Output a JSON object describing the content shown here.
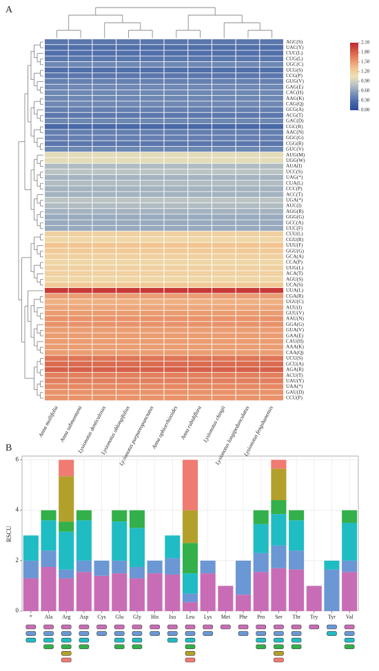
{
  "chart_data": [
    {
      "type": "heatmap",
      "label": "A",
      "rows": [
        "AGC(S)",
        "UAC(Y)",
        "CUC(L)",
        "CUG(L)",
        "UGC(C)",
        "UCG(S)",
        "CCG(P)",
        "GUG(V)",
        "GAG(E)",
        "CAC(H)",
        "AAG(K)",
        "CAG(Q)",
        "GCG(A)",
        "ACG(T)",
        "GAC(D)",
        "CGC(R)",
        "AAC(N)",
        "GGC(G)",
        "CGG(R)",
        "GUC(V)",
        "AUG(M)",
        "UGG(W)",
        "AUA(I)",
        "UCC(S)",
        "UAG(*)",
        "CUA(L)",
        "CCC(P)",
        "ACC(T)",
        "UGA(*)",
        "AUC(I)",
        "AGG(R)",
        "GGG(G)",
        "GCC(A)",
        "UUC(F)",
        "CUU(L)",
        "CGU(R)",
        "UUU(F)",
        "GGU(G)",
        "GCA(A)",
        "CCA(P)",
        "UUG(L)",
        "ACA(T)",
        "AGU(S)",
        "UCA(S)",
        "UUA(L)",
        "CGA(R)",
        "UGU(C)",
        "AUU(I)",
        "GUU(V)",
        "AAU(N)",
        "GGA(G)",
        "GUA(V)",
        "GAA(E)",
        "CAU(H)",
        "AAA(K)",
        "CAA(Q)",
        "UCU(S)",
        "GCU(A)",
        "AGA(R)",
        "ACU(T)",
        "UAU(Y)",
        "UAA(*)",
        "GAU(D)",
        "CCU(P)"
      ],
      "columns": [
        "Anna mollifolia",
        "Anna submontana",
        "Lysionotus denticulosus",
        "Lysionotus oblongifolius",
        "Lysionotus purpureopunctatus",
        "Anna ophiorrhizoides",
        "Anna rubidiflora",
        "Lysionotus chingii",
        "Lysionotus longipedunculatus",
        "Lysionotus fengshanensis"
      ],
      "values": [
        [
          0.35,
          0.35,
          0.35,
          0.35,
          0.35,
          0.35,
          0.35,
          0.35,
          0.35,
          0.35
        ],
        [
          0.3,
          0.3,
          0.3,
          0.3,
          0.3,
          0.3,
          0.3,
          0.3,
          0.3,
          0.3
        ],
        [
          0.3,
          0.3,
          0.3,
          0.3,
          0.3,
          0.3,
          0.3,
          0.3,
          0.3,
          0.3
        ],
        [
          0.35,
          0.35,
          0.35,
          0.35,
          0.35,
          0.35,
          0.35,
          0.35,
          0.35,
          0.35
        ],
        [
          0.45,
          0.45,
          0.45,
          0.45,
          0.45,
          0.45,
          0.45,
          0.45,
          0.45,
          0.45
        ],
        [
          0.3,
          0.3,
          0.3,
          0.3,
          0.3,
          0.3,
          0.3,
          0.3,
          0.3,
          0.3
        ],
        [
          0.35,
          0.35,
          0.35,
          0.35,
          0.35,
          0.35,
          0.35,
          0.35,
          0.35,
          0.35
        ],
        [
          0.4,
          0.4,
          0.4,
          0.4,
          0.4,
          0.4,
          0.4,
          0.4,
          0.4,
          0.4
        ],
        [
          0.45,
          0.45,
          0.45,
          0.45,
          0.45,
          0.45,
          0.45,
          0.45,
          0.45,
          0.45
        ],
        [
          0.45,
          0.45,
          0.45,
          0.45,
          0.45,
          0.45,
          0.45,
          0.45,
          0.45,
          0.45
        ],
        [
          0.45,
          0.45,
          0.45,
          0.45,
          0.45,
          0.45,
          0.45,
          0.45,
          0.45,
          0.45
        ],
        [
          0.45,
          0.45,
          0.45,
          0.45,
          0.45,
          0.45,
          0.45,
          0.45,
          0.45,
          0.45
        ],
        [
          0.4,
          0.4,
          0.4,
          0.4,
          0.4,
          0.4,
          0.4,
          0.4,
          0.4,
          0.4
        ],
        [
          0.35,
          0.35,
          0.35,
          0.35,
          0.35,
          0.35,
          0.35,
          0.35,
          0.35,
          0.35
        ],
        [
          0.45,
          0.45,
          0.45,
          0.45,
          0.45,
          0.45,
          0.45,
          0.45,
          0.45,
          0.45
        ],
        [
          0.25,
          0.25,
          0.25,
          0.25,
          0.25,
          0.25,
          0.25,
          0.25,
          0.25,
          0.25
        ],
        [
          0.4,
          0.4,
          0.4,
          0.4,
          0.4,
          0.4,
          0.4,
          0.4,
          0.4,
          0.4
        ],
        [
          0.4,
          0.4,
          0.4,
          0.4,
          0.4,
          0.4,
          0.4,
          0.4,
          0.4,
          0.4
        ],
        [
          0.35,
          0.35,
          0.35,
          0.35,
          0.35,
          0.35,
          0.35,
          0.35,
          0.35,
          0.35
        ],
        [
          0.45,
          0.45,
          0.45,
          0.45,
          0.45,
          0.45,
          0.45,
          0.45,
          0.45,
          0.45
        ],
        [
          1,
          1,
          1,
          1,
          1,
          1,
          1,
          1,
          1,
          1
        ],
        [
          1,
          1,
          1,
          1,
          1,
          1,
          1,
          1,
          1,
          1
        ],
        [
          0.75,
          0.75,
          0.75,
          0.75,
          0.75,
          0.75,
          0.75,
          0.75,
          0.75,
          0.75
        ],
        [
          0.8,
          0.8,
          0.8,
          0.8,
          0.8,
          0.8,
          0.8,
          0.8,
          0.8,
          0.8
        ],
        [
          0.7,
          0.7,
          0.7,
          0.7,
          0.7,
          0.7,
          0.7,
          0.7,
          0.7,
          0.7
        ],
        [
          0.75,
          0.75,
          0.75,
          0.75,
          0.75,
          0.75,
          0.75,
          0.75,
          0.75,
          0.75
        ],
        [
          0.7,
          0.7,
          0.7,
          0.7,
          0.7,
          0.7,
          0.7,
          0.7,
          0.7,
          0.7
        ],
        [
          0.7,
          0.7,
          0.7,
          0.7,
          0.7,
          0.7,
          0.7,
          0.7,
          0.7,
          0.7
        ],
        [
          0.8,
          0.8,
          0.8,
          0.8,
          0.8,
          0.8,
          0.8,
          0.8,
          0.8,
          0.8
        ],
        [
          0.75,
          0.75,
          0.75,
          0.75,
          0.75,
          0.75,
          0.75,
          0.75,
          0.75,
          0.75
        ],
        [
          0.7,
          0.7,
          0.7,
          0.7,
          0.7,
          0.7,
          0.7,
          0.7,
          0.7,
          0.7
        ],
        [
          0.65,
          0.65,
          0.65,
          0.65,
          0.65,
          0.65,
          0.65,
          0.65,
          0.65,
          0.65
        ],
        [
          0.65,
          0.65,
          0.65,
          0.65,
          0.65,
          0.65,
          0.65,
          0.65,
          0.65,
          0.65
        ],
        [
          0.65,
          0.65,
          0.65,
          0.65,
          0.65,
          0.65,
          0.65,
          0.65,
          0.65,
          0.65
        ],
        [
          1.2,
          1.2,
          1.2,
          1.2,
          1.2,
          1.2,
          1.2,
          1.2,
          1.2,
          1.2
        ],
        [
          1.15,
          1.15,
          1.15,
          1.15,
          1.15,
          1.15,
          1.15,
          1.15,
          1.15,
          1.15
        ],
        [
          1.3,
          1.3,
          1.3,
          1.3,
          1.3,
          1.3,
          1.3,
          1.3,
          1.3,
          1.3
        ],
        [
          1.25,
          1.25,
          1.25,
          1.25,
          1.25,
          1.25,
          1.25,
          1.25,
          1.25,
          1.25
        ],
        [
          1.2,
          1.2,
          1.2,
          1.2,
          1.2,
          1.2,
          1.2,
          1.2,
          1.2,
          1.2
        ],
        [
          1.15,
          1.15,
          1.15,
          1.15,
          1.15,
          1.15,
          1.15,
          1.15,
          1.15,
          1.15
        ],
        [
          1.2,
          1.2,
          1.2,
          1.2,
          1.2,
          1.2,
          1.2,
          1.2,
          1.2,
          1.2
        ],
        [
          1.2,
          1.2,
          1.2,
          1.2,
          1.2,
          1.2,
          1.2,
          1.2,
          1.2,
          1.2
        ],
        [
          1.15,
          1.15,
          1.15,
          1.15,
          1.15,
          1.15,
          1.15,
          1.15,
          1.15,
          1.15
        ],
        [
          1.25,
          1.25,
          1.25,
          1.25,
          1.25,
          1.25,
          1.25,
          1.25,
          1.25,
          1.25
        ],
        [
          2,
          2,
          2,
          2,
          2,
          2,
          2,
          2,
          2,
          2
        ],
        [
          1.5,
          1.5,
          1.5,
          1.5,
          1.5,
          1.5,
          1.5,
          1.5,
          1.5,
          1.5
        ],
        [
          1.4,
          1.4,
          1.4,
          1.4,
          1.4,
          1.4,
          1.4,
          1.4,
          1.4,
          1.4
        ],
        [
          1.45,
          1.45,
          1.45,
          1.45,
          1.45,
          1.45,
          1.45,
          1.45,
          1.45,
          1.45
        ],
        [
          1.5,
          1.5,
          1.5,
          1.5,
          1.5,
          1.5,
          1.5,
          1.5,
          1.5,
          1.5
        ],
        [
          1.55,
          1.55,
          1.55,
          1.55,
          1.55,
          1.55,
          1.55,
          1.55,
          1.55,
          1.55
        ],
        [
          1.55,
          1.55,
          1.55,
          1.55,
          1.55,
          1.55,
          1.55,
          1.55,
          1.55,
          1.55
        ],
        [
          1.5,
          1.5,
          1.5,
          1.5,
          1.5,
          1.5,
          1.5,
          1.5,
          1.5,
          1.5
        ],
        [
          1.5,
          1.5,
          1.5,
          1.5,
          1.5,
          1.5,
          1.5,
          1.5,
          1.5,
          1.5
        ],
        [
          1.5,
          1.5,
          1.5,
          1.5,
          1.5,
          1.5,
          1.5,
          1.5,
          1.5,
          1.5
        ],
        [
          1.5,
          1.5,
          1.5,
          1.5,
          1.5,
          1.5,
          1.5,
          1.5,
          1.5,
          1.5
        ],
        [
          1.5,
          1.5,
          1.5,
          1.5,
          1.5,
          1.5,
          1.5,
          1.5,
          1.5,
          1.5
        ],
        [
          1.7,
          1.7,
          1.7,
          1.7,
          1.7,
          1.7,
          1.7,
          1.7,
          1.7,
          1.7
        ],
        [
          1.75,
          1.75,
          1.75,
          1.75,
          1.75,
          1.75,
          1.75,
          1.75,
          1.75,
          1.75
        ],
        [
          1.8,
          1.8,
          1.8,
          1.8,
          1.8,
          1.8,
          1.8,
          1.8,
          1.8,
          1.8
        ],
        [
          1.65,
          1.65,
          1.65,
          1.65,
          1.65,
          1.65,
          1.65,
          1.65,
          1.65,
          1.65
        ],
        [
          1.65,
          1.65,
          1.65,
          1.65,
          1.65,
          1.65,
          1.65,
          1.65,
          1.65,
          1.65
        ],
        [
          1.6,
          1.6,
          1.6,
          1.6,
          1.6,
          1.6,
          1.6,
          1.6,
          1.6,
          1.6
        ],
        [
          1.55,
          1.55,
          1.55,
          1.55,
          1.55,
          1.55,
          1.55,
          1.55,
          1.55,
          1.55
        ],
        [
          1.55,
          1.55,
          1.55,
          1.55,
          1.55,
          1.55,
          1.55,
          1.55,
          1.55,
          1.55
        ]
      ],
      "clim": [
        0,
        2.1
      ],
      "cticks": [
        {
          "value": 0,
          "label": "0.00"
        },
        {
          "value": 0.3,
          "label": "0.30"
        },
        {
          "value": 0.6,
          "label": "0.60"
        },
        {
          "value": 0.9,
          "label": "0.90"
        },
        {
          "value": 1.2,
          "label": "1.20"
        },
        {
          "value": 1.5,
          "label": "1.50"
        },
        {
          "value": 1.8,
          "label": "1.80"
        },
        {
          "value": 2.1,
          "label": "2.10"
        }
      ],
      "colors": [
        "#2a4a9a",
        "#4a69a8",
        "#7d94b8",
        "#b8c3c4",
        "#ede2b6",
        "#f2c28f",
        "#e88e67",
        "#d35a45",
        "#c2262e"
      ]
    },
    {
      "type": "bar",
      "label": "B",
      "stacked": true,
      "ylabel": "RSCU",
      "grid": true,
      "categories": [
        "*",
        "Ala",
        "Arg",
        "Asp",
        "Cys",
        "Glu",
        "Gly",
        "His",
        "Iso",
        "Leu",
        "Lys",
        "Met",
        "Phe",
        "Pro",
        "Ser",
        "Thr",
        "Try",
        "Tyr",
        "Val"
      ],
      "series": [
        {
          "color": "#c86db5",
          "values": [
            1.3,
            1.75,
            1.3,
            1.55,
            1.4,
            1.5,
            1.3,
            1.5,
            1.45,
            0.35,
            1.5,
            1,
            0.65,
            1.55,
            1.7,
            1.65,
            1,
            null,
            1.55
          ]
        },
        {
          "color": "#6b97d4",
          "values": [
            0.7,
            0.65,
            0.35,
            0.45,
            0.6,
            0.5,
            0.45,
            0.5,
            0.65,
            0.35,
            0.5,
            null,
            1.35,
            0.75,
            0.9,
            0.75,
            null,
            1.65,
            0.45
          ]
        },
        {
          "color": "#20bcc4",
          "values": [
            1,
            1.2,
            1.5,
            1.6,
            null,
            1.55,
            1.55,
            null,
            0.9,
            0.8,
            null,
            null,
            null,
            1.15,
            1.25,
            1.2,
            null,
            0.35,
            1.5
          ]
        },
        {
          "color": "#33b04a",
          "values": [
            null,
            0.4,
            0.4,
            0.4,
            null,
            0.45,
            0.7,
            null,
            null,
            1.2,
            null,
            null,
            null,
            0.55,
            0.55,
            0.4,
            null,
            null,
            0.5
          ]
        },
        {
          "color": "#b3a02a",
          "values": [
            null,
            null,
            1.8,
            null,
            null,
            null,
            null,
            null,
            null,
            1.3,
            null,
            null,
            null,
            null,
            1.25,
            null,
            null,
            null,
            null
          ]
        },
        {
          "color": "#ef7b72",
          "values": [
            null,
            null,
            0.65,
            null,
            null,
            null,
            null,
            null,
            null,
            2,
            null,
            null,
            null,
            null,
            0.35,
            null,
            null,
            null,
            null
          ]
        }
      ],
      "ylim": [
        0,
        6.15
      ],
      "yticks": [
        0,
        2,
        4,
        6
      ]
    }
  ]
}
